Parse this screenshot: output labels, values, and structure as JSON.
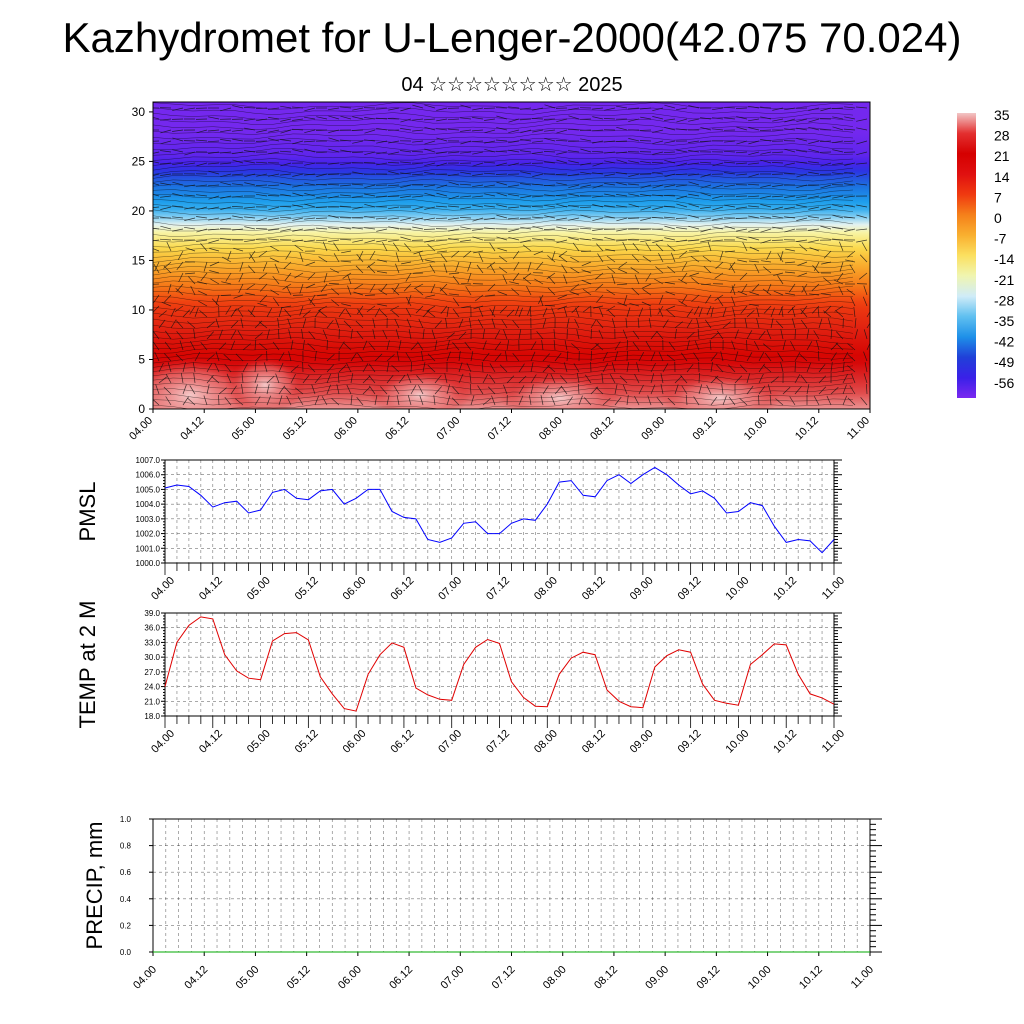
{
  "title": "Kazhydromet for U-Lenger-2000(42.075 70.024)",
  "subtitle": "04 ☆☆☆☆☆☆☆☆ 2025",
  "chart_data": [
    {
      "type": "heatmap",
      "name": "temperature-wind-cross-section",
      "x_ticks": [
        "04.00",
        "04.12",
        "05.00",
        "05.12",
        "06.00",
        "06.12",
        "07.00",
        "07.12",
        "08.00",
        "08.12",
        "09.00",
        "09.12",
        "10.00",
        "10.12",
        "11.00"
      ],
      "y_ticks": [
        "0",
        "5",
        "10",
        "15",
        "20",
        "25",
        "30"
      ],
      "ylim": [
        0,
        31
      ],
      "colorbar_labels": [
        "35",
        "28",
        "21",
        "14",
        "7",
        "0",
        "-7",
        "-14",
        "-21",
        "-28",
        "-35",
        "-42",
        "-49",
        "-56"
      ],
      "colorbar_colors": [
        "#f2c6c6",
        "#e33030",
        "#d50000",
        "#e01010",
        "#f03a10",
        "#f5801a",
        "#f9b030",
        "#fbe060",
        "#f0f5b0",
        "#d0ecf8",
        "#60c0f0",
        "#1e90e8",
        "#2040d8",
        "#3a20e8",
        "#7a28f0"
      ],
      "profile": [
        {
          "height": 0,
          "temp": 33
        },
        {
          "height": 5,
          "temp": 24
        },
        {
          "height": 10,
          "temp": 14
        },
        {
          "height": 15,
          "temp": 0
        },
        {
          "height": 18,
          "temp": -10
        },
        {
          "height": 20,
          "temp": -28
        },
        {
          "height": 23,
          "temp": -42
        },
        {
          "height": 25,
          "temp": -56
        },
        {
          "height": 28,
          "temp": -58
        },
        {
          "height": 31,
          "temp": -58
        }
      ]
    },
    {
      "type": "line",
      "name": "pmsl",
      "ylabel": "PMSL",
      "x_ticks": [
        "04.00",
        "04.12",
        "05.00",
        "05.12",
        "06.00",
        "06.12",
        "07.00",
        "07.12",
        "08.00",
        "08.12",
        "09.00",
        "09.12",
        "10.00",
        "10.12",
        "11.00"
      ],
      "y_ticks": [
        "1000.0",
        "1001.0",
        "1002.0",
        "1003.0",
        "1004.0",
        "1005.0",
        "1006.0",
        "1007.0"
      ],
      "ylim": [
        1000.0,
        1007.0
      ],
      "series": [
        {
          "color": "#0000ff",
          "values": [
            1005.1,
            1005.3,
            1005.2,
            1004.6,
            1003.8,
            1004.1,
            1004.2,
            1003.4,
            1003.6,
            1004.8,
            1005.0,
            1004.4,
            1004.3,
            1004.9,
            1005.0,
            1004.0,
            1004.4,
            1005.0,
            1005.0,
            1003.5,
            1003.1,
            1003.0,
            1001.6,
            1001.4,
            1001.7,
            1002.7,
            1002.8,
            1002.0,
            1002.0,
            1002.7,
            1003.0,
            1002.9,
            1004.0,
            1005.5,
            1005.6,
            1004.6,
            1004.5,
            1005.6,
            1006.0,
            1005.4,
            1006.0,
            1006.5,
            1006.0,
            1005.3,
            1004.7,
            1004.9,
            1004.4,
            1003.4,
            1003.5,
            1004.1,
            1003.9,
            1002.5,
            1001.4,
            1001.6,
            1001.5,
            1000.7,
            1001.6
          ]
        }
      ]
    },
    {
      "type": "line",
      "name": "temp-2m",
      "ylabel": "TEMP at 2 M",
      "x_ticks": [
        "04.00",
        "04.12",
        "05.00",
        "05.12",
        "06.00",
        "06.12",
        "07.00",
        "07.12",
        "08.00",
        "08.12",
        "09.00",
        "09.12",
        "10.00",
        "10.12",
        "11.00"
      ],
      "y_ticks": [
        "18.0",
        "21.0",
        "24.0",
        "27.0",
        "30.0",
        "33.0",
        "36.0",
        "39.0"
      ],
      "ylim": [
        18.0,
        39.0
      ],
      "series": [
        {
          "color": "#e00000",
          "values": [
            24.0,
            33.0,
            36.5,
            38.2,
            37.8,
            30.5,
            27.2,
            25.7,
            25.4,
            33.3,
            34.8,
            35.0,
            33.5,
            26.0,
            22.5,
            19.5,
            19.0,
            26.5,
            30.5,
            32.9,
            32.0,
            23.7,
            22.3,
            21.4,
            21.2,
            28.5,
            32.0,
            33.6,
            32.8,
            25.0,
            21.8,
            20.0,
            19.9,
            26.5,
            29.8,
            31.0,
            30.5,
            23.3,
            21.0,
            19.9,
            19.7,
            28.0,
            30.3,
            31.5,
            31.0,
            24.5,
            21.2,
            20.6,
            20.2,
            28.5,
            30.5,
            32.7,
            32.5,
            26.5,
            22.5,
            21.7,
            20.4
          ]
        }
      ]
    },
    {
      "type": "line",
      "name": "precip",
      "ylabel": "PRECIP, mm",
      "x_ticks": [
        "04.00",
        "04.12",
        "05.00",
        "05.12",
        "06.00",
        "06.12",
        "07.00",
        "07.12",
        "08.00",
        "08.12",
        "09.00",
        "09.12",
        "10.00",
        "10.12",
        "11.00"
      ],
      "y_ticks": [
        "0.0",
        "0.2",
        "0.4",
        "0.6",
        "0.8",
        "1.0"
      ],
      "ylim": [
        0.0,
        1.0
      ],
      "series": [
        {
          "color": "#00aa00",
          "values": [
            0,
            0,
            0,
            0,
            0,
            0,
            0,
            0,
            0,
            0,
            0,
            0,
            0,
            0,
            0,
            0,
            0,
            0,
            0,
            0,
            0,
            0,
            0,
            0,
            0,
            0,
            0,
            0,
            0,
            0,
            0,
            0,
            0,
            0,
            0,
            0,
            0,
            0,
            0,
            0,
            0,
            0,
            0,
            0,
            0,
            0,
            0,
            0,
            0,
            0,
            0,
            0,
            0,
            0,
            0,
            0,
            0
          ]
        }
      ]
    }
  ]
}
